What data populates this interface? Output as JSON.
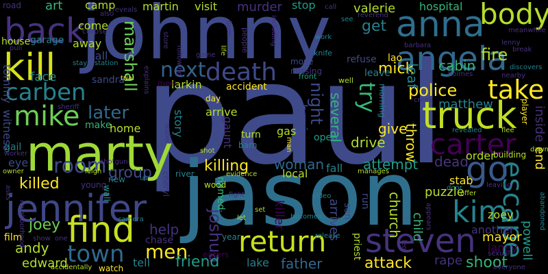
{
  "colors": {
    "background": "#000000",
    "palette": [
      "#440154",
      "#482878",
      "#3e4a89",
      "#31688e",
      "#26828e",
      "#1f9e89",
      "#35b779",
      "#6ece58",
      "#b5de2b",
      "#fde725"
    ]
  },
  "words": [
    {
      "text": "paul",
      "color": "#3e4a89"
    },
    {
      "text": "jason",
      "color": "#2f6f8e"
    },
    {
      "text": "johnny",
      "color": "#3e4a89"
    },
    {
      "text": "marty",
      "color": "#9fd938"
    },
    {
      "text": "jennifer",
      "color": "#3f4788"
    },
    {
      "text": "steven",
      "color": "#46327e"
    },
    {
      "text": "find",
      "color": "#c8e020"
    },
    {
      "text": "return",
      "color": "#c8e020"
    },
    {
      "text": "truck",
      "color": "#c2df23"
    },
    {
      "text": "kill",
      "color": "#d8e219"
    },
    {
      "text": "anna",
      "color": "#2e6e8e"
    },
    {
      "text": "angela",
      "color": "#31688e"
    },
    {
      "text": "back",
      "color": "#46327e"
    },
    {
      "text": "death",
      "color": "#3e4a89"
    },
    {
      "text": "carben",
      "color": "#26828e"
    },
    {
      "text": "mike",
      "color": "#6ece58"
    },
    {
      "text": "body",
      "color": "#b5de2b"
    },
    {
      "text": "take",
      "color": "#fde725"
    },
    {
      "text": "carter",
      "color": "#440154"
    },
    {
      "text": "escape",
      "color": "#26828e"
    },
    {
      "text": "kim",
      "color": "#25838e"
    },
    {
      "text": "room",
      "color": "#3e4a89"
    },
    {
      "text": "town",
      "color": "#31688e"
    },
    {
      "text": "go",
      "color": "#38598c"
    },
    {
      "text": "next",
      "color": "#33628d"
    },
    {
      "text": "try",
      "color": "#35b779"
    },
    {
      "text": "men",
      "color": "#fde725"
    },
    {
      "text": "marshall",
      "color": "#6ece58"
    },
    {
      "text": "police",
      "color": "#fde725"
    },
    {
      "text": "later",
      "color": "#31688e"
    },
    {
      "text": "killing",
      "color": "#fde725"
    },
    {
      "text": "joshua",
      "color": "#46327e"
    },
    {
      "text": "group",
      "color": "#3e4a89"
    },
    {
      "text": "help",
      "color": "#46327e"
    },
    {
      "text": "friend",
      "color": "#1f9e89"
    },
    {
      "text": "attack",
      "color": "#fde725"
    },
    {
      "text": "shoot",
      "color": "#35b779"
    },
    {
      "text": "father",
      "color": "#31688e"
    },
    {
      "text": "andy",
      "color": "#b5de2b"
    },
    {
      "text": "joey",
      "color": "#6ece58"
    },
    {
      "text": "edward",
      "color": "#b5de2b"
    },
    {
      "text": "killed",
      "color": "#fde725"
    },
    {
      "text": "woman",
      "color": "#31688e"
    },
    {
      "text": "attempt",
      "color": "#1f9e89"
    },
    {
      "text": "matthew",
      "color": "#26828e"
    },
    {
      "text": "mick",
      "color": "#fde725"
    },
    {
      "text": "cabin",
      "color": "#35b779"
    },
    {
      "text": "fire",
      "color": "#b5de2b"
    },
    {
      "text": "get",
      "color": "#26828e"
    },
    {
      "text": "night",
      "color": "#3e4a89"
    },
    {
      "text": "several",
      "color": "#35b779"
    },
    {
      "text": "drive",
      "color": "#b5de2b"
    },
    {
      "text": "give",
      "color": "#fde725"
    },
    {
      "text": "church",
      "color": "#b5de2b"
    },
    {
      "text": "dead",
      "color": "#46327e"
    },
    {
      "text": "puzzle",
      "color": "#b5de2b"
    },
    {
      "text": "mayor",
      "color": "#fde725"
    },
    {
      "text": "another",
      "color": "#46327e"
    },
    {
      "text": "zoey",
      "color": "#b5de2b"
    },
    {
      "text": "laney",
      "color": "#440154"
    },
    {
      "text": "rape",
      "color": "#46327e"
    },
    {
      "text": "powell",
      "color": "#1f9e89"
    },
    {
      "text": "end",
      "color": "#fde725"
    },
    {
      "text": "inside",
      "color": "#46327e"
    },
    {
      "text": "begin",
      "color": "#3e4a89"
    },
    {
      "text": "leaf",
      "color": "#26828e"
    },
    {
      "text": "throw",
      "color": "#fde725"
    },
    {
      "text": "child",
      "color": "#35b779"
    },
    {
      "text": "stab",
      "color": "#fde725"
    },
    {
      "text": "order",
      "color": "#b5de2b"
    },
    {
      "text": "killer",
      "color": "#440154"
    },
    {
      "text": "arrives",
      "color": "#3e4a89"
    },
    {
      "text": "fall",
      "color": "#26828e"
    },
    {
      "text": "lake",
      "color": "#26828e"
    },
    {
      "text": "tell",
      "color": "#26828e"
    },
    {
      "text": "chase",
      "color": "#46327e"
    },
    {
      "text": "film",
      "color": "#fde725"
    },
    {
      "text": "witness",
      "color": "#3e4a89"
    },
    {
      "text": "tommy",
      "color": "#3e4a89"
    },
    {
      "text": "face",
      "color": "#26828e"
    },
    {
      "text": "house",
      "color": "#b5de2b"
    },
    {
      "text": "art",
      "color": "#35b779"
    },
    {
      "text": "camp",
      "color": "#b5de2b"
    },
    {
      "text": "martin",
      "color": "#b5de2b"
    },
    {
      "text": "visit",
      "color": "#b5de2b"
    },
    {
      "text": "murder",
      "color": "#46327e"
    },
    {
      "text": "stop",
      "color": "#1f9e89"
    },
    {
      "text": "valerie",
      "color": "#b5de2b"
    },
    {
      "text": "hospital",
      "color": "#35b779"
    },
    {
      "text": "come",
      "color": "#b5de2b"
    },
    {
      "text": "away",
      "color": "#b5de2b"
    },
    {
      "text": "call",
      "color": "#3e4a89"
    },
    {
      "text": "sandra",
      "color": "#3e4a89"
    },
    {
      "text": "garage",
      "color": "#26828e"
    },
    {
      "text": "home",
      "color": "#b5de2b"
    },
    {
      "text": "make",
      "color": "#35b779"
    },
    {
      "text": "larkin",
      "color": "#b5de2b"
    },
    {
      "text": "accident",
      "color": "#fde725"
    },
    {
      "text": "arrive",
      "color": "#b5de2b"
    },
    {
      "text": "story",
      "color": "#26828e"
    },
    {
      "text": "gaunt",
      "color": "#46327e"
    },
    {
      "text": "named",
      "color": "#35b779"
    },
    {
      "text": "local",
      "color": "#b5de2b"
    },
    {
      "text": "gas",
      "color": "#b5de2b"
    },
    {
      "text": "turn",
      "color": "#b5de2b"
    },
    {
      "text": "barn",
      "color": "#26828e"
    },
    {
      "text": "open",
      "color": "#1f9e89"
    },
    {
      "text": "run",
      "color": "#3e4a89"
    },
    {
      "text": "son",
      "color": "#3e4a89"
    },
    {
      "text": "priest",
      "color": "#b5de2b"
    },
    {
      "text": "leave",
      "color": "#26828e"
    },
    {
      "text": "lao",
      "color": "#fde725"
    },
    {
      "text": "refuse",
      "color": "#3e4a89"
    },
    {
      "text": "move",
      "color": "#3e4a89"
    },
    {
      "text": "missing",
      "color": "#46327e"
    },
    {
      "text": "morning",
      "color": "#26828e"
    },
    {
      "text": "eye",
      "color": "#3e4a89"
    },
    {
      "text": "gail",
      "color": "#26828e"
    },
    {
      "text": "wood",
      "color": "#b5de2b"
    },
    {
      "text": "river",
      "color": "#26828e"
    },
    {
      "text": "year",
      "color": "#26828e"
    },
    {
      "text": "enters",
      "color": "#440154"
    },
    {
      "text": "watch",
      "color": "#fde725"
    },
    {
      "text": "day",
      "color": "#fde725"
    },
    {
      "text": "meet",
      "color": "#440154"
    },
    {
      "text": "young",
      "color": "#46327e"
    },
    {
      "text": "cheryl",
      "color": "#46327e"
    },
    {
      "text": "new",
      "color": "#26828e"
    },
    {
      "text": "wall",
      "color": "#1f9e89"
    },
    {
      "text": "knife",
      "color": "#26828e"
    },
    {
      "text": "front",
      "color": "#1f9e89"
    },
    {
      "text": "well",
      "color": "#b5de2b"
    },
    {
      "text": "road",
      "color": "#46327e"
    },
    {
      "text": "corpse",
      "color": "#46327e"
    },
    {
      "text": "also",
      "color": "#46327e"
    },
    {
      "text": "reveals",
      "color": "#46327e"
    },
    {
      "text": "burn",
      "color": "#46327e"
    },
    {
      "text": "people",
      "color": "#46327e"
    },
    {
      "text": "including",
      "color": "#46327e"
    },
    {
      "text": "work",
      "color": "#26828e"
    },
    {
      "text": "reverend",
      "color": "#46327e"
    },
    {
      "text": "see",
      "color": "#26828e"
    },
    {
      "text": "barbara",
      "color": "#46327e"
    },
    {
      "text": "meanwhile",
      "color": "#46327e"
    },
    {
      "text": "lenny",
      "color": "#46327e"
    },
    {
      "text": "break",
      "color": "#46327e"
    },
    {
      "text": "holmes",
      "color": "#46327e"
    },
    {
      "text": "nearby",
      "color": "#46327e"
    },
    {
      "text": "discovers",
      "color": "#26828e"
    },
    {
      "text": "player",
      "color": "#fde725"
    },
    {
      "text": "creek",
      "color": "#46327e"
    },
    {
      "text": "flee",
      "color": "#b5de2b"
    },
    {
      "text": "revealed",
      "color": "#26828e"
    },
    {
      "text": "building",
      "color": "#b5de2b"
    },
    {
      "text": "dawn",
      "color": "#b5de2b"
    },
    {
      "text": "leaving",
      "color": "#46327e"
    },
    {
      "text": "offer",
      "color": "#b5de2b"
    },
    {
      "text": "abandoned",
      "color": "#26828e"
    },
    {
      "text": "appears",
      "color": "#46327e"
    },
    {
      "text": "sexual",
      "color": "#46327e"
    },
    {
      "text": "everyone",
      "color": "#46327e"
    },
    {
      "text": "door",
      "color": "#26828e"
    },
    {
      "text": "video",
      "color": "#26828e"
    },
    {
      "text": "becomes",
      "color": "#26828e"
    },
    {
      "text": "release",
      "color": "#26828e"
    },
    {
      "text": "set",
      "color": "#b5de2b"
    },
    {
      "text": "let",
      "color": "#b5de2b"
    },
    {
      "text": "fight",
      "color": "#46327e"
    },
    {
      "text": "evidence",
      "color": "#b5de2b"
    },
    {
      "text": "manages",
      "color": "#b5de2b"
    },
    {
      "text": "shot",
      "color": "#b5de2b"
    },
    {
      "text": "man",
      "color": "#fde725"
    },
    {
      "text": "camera",
      "color": "#26828e"
    },
    {
      "text": "water",
      "color": "#46327e"
    },
    {
      "text": "us",
      "color": "#26828e"
    },
    {
      "text": "shotgun",
      "color": "#46327e"
    },
    {
      "text": "leigh",
      "color": "#b5de2b"
    },
    {
      "text": "sheriff",
      "color": "#46327e"
    },
    {
      "text": "trial",
      "color": "#fde725"
    },
    {
      "text": "explains",
      "color": "#46327e"
    },
    {
      "text": "store",
      "color": "#46327e"
    },
    {
      "text": "following",
      "color": "#46327e"
    },
    {
      "text": "game",
      "color": "#46327e"
    },
    {
      "text": "life",
      "color": "#b5de2b"
    },
    {
      "text": "stay",
      "color": "#26828e"
    },
    {
      "text": "station",
      "color": "#26828e"
    },
    {
      "text": "pull",
      "color": "#46327e"
    },
    {
      "text": "worker",
      "color": "#46327e"
    },
    {
      "text": "owner",
      "color": "#b5de2b"
    },
    {
      "text": "asks",
      "color": "#46327e"
    },
    {
      "text": "neighborhood",
      "color": "#46327e"
    },
    {
      "text": "accidentally",
      "color": "#b5de2b"
    },
    {
      "text": "show",
      "color": "#46327e"
    },
    {
      "text": "one",
      "color": "#46327e"
    },
    {
      "text": "leg",
      "color": "#46327e"
    },
    {
      "text": "call",
      "color": "#46327e"
    }
  ]
}
